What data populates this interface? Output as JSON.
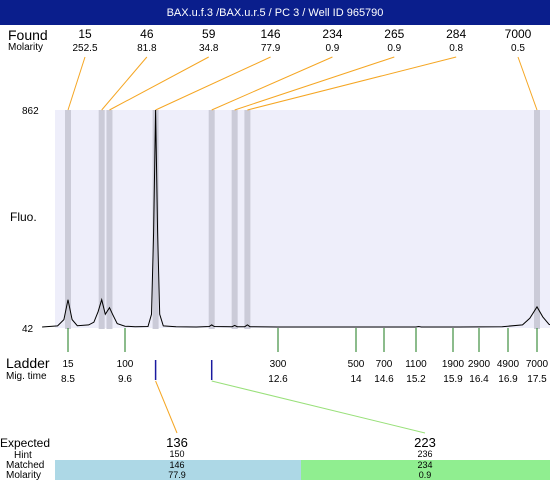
{
  "header": {
    "title": "BAX.u.f.3 /BAX.u.r.5 / PC 3 / Well ID 965790"
  },
  "labels": {
    "found": "Found",
    "molarity": "Molarity",
    "fluo": "Fluo.",
    "ladder": "Ladder",
    "mig_time": "Mig. time",
    "expected": "Expected",
    "hint": "Hint",
    "matched": "Matched",
    "molarity2": "Molarity"
  },
  "colors": {
    "header_bg": "#0a1e8c",
    "plot_bg": "#eeeefa",
    "peak_band": "#cbcbd8",
    "found_line": "#f5a623",
    "ladder_tick": "#1a7a1a",
    "expected_tick": "#1a1aa0",
    "expected_line": "#f5a623",
    "expected_line2": "#99e07a",
    "matched1_bg": "#add8e6",
    "matched2_bg": "#90ee90"
  },
  "chart_data": {
    "type": "line",
    "title": "BAX.u.f.3 /BAX.u.r.5 / PC 3 / Well ID 965790",
    "xlabel": "",
    "ylabel": "Fluo.",
    "ylim": [
      42,
      862
    ],
    "y_ticks": [
      "862",
      "42"
    ],
    "found_peaks": [
      {
        "size": "15",
        "molarity": "252.5",
        "mig_time": 8.5
      },
      {
        "size": "46",
        "molarity": "81.8",
        "mig_time": 9.15
      },
      {
        "size": "59",
        "molarity": "34.8",
        "mig_time": 9.3
      },
      {
        "size": "146",
        "molarity": "77.9",
        "mig_time": 10.2
      },
      {
        "size": "234",
        "molarity": "0.9",
        "mig_time": 11.3
      },
      {
        "size": "265",
        "molarity": "0.9",
        "mig_time": 11.75
      },
      {
        "size": "284",
        "molarity": "0.8",
        "mig_time": 12.0
      },
      {
        "size": "7000",
        "molarity": "0.5",
        "mig_time": 17.5
      }
    ],
    "ladder": [
      {
        "size": "15",
        "mig_time": "8.5"
      },
      {
        "size": "100",
        "mig_time": "9.6"
      },
      {
        "size": "300",
        "mig_time": "12.6"
      },
      {
        "size": "500",
        "mig_time": "14"
      },
      {
        "size": "700",
        "mig_time": "14.6"
      },
      {
        "size": "1100",
        "mig_time": "15.2"
      },
      {
        "size": "1900",
        "mig_time": "15.9"
      },
      {
        "size": "2900",
        "mig_time": "16.4"
      },
      {
        "size": "4900",
        "mig_time": "16.9"
      },
      {
        "size": "7000",
        "mig_time": "17.5"
      }
    ],
    "expected": [
      {
        "size": "136",
        "hint": "150",
        "matched": "146",
        "molarity": "77.9",
        "mig_time": 10.2
      },
      {
        "size": "223",
        "hint": "236",
        "matched": "234",
        "molarity": "0.9",
        "mig_time": 11.3
      }
    ],
    "trace": [
      [
        8.0,
        42
      ],
      [
        8.3,
        46
      ],
      [
        8.42,
        70
      ],
      [
        8.5,
        145
      ],
      [
        8.58,
        70
      ],
      [
        8.68,
        47
      ],
      [
        8.9,
        50
      ],
      [
        9.0,
        60
      ],
      [
        9.08,
        100
      ],
      [
        9.15,
        145
      ],
      [
        9.22,
        90
      ],
      [
        9.3,
        115
      ],
      [
        9.36,
        90
      ],
      [
        9.45,
        55
      ],
      [
        9.6,
        45
      ],
      [
        9.8,
        43
      ],
      [
        10.05,
        44
      ],
      [
        10.12,
        90
      ],
      [
        10.16,
        400
      ],
      [
        10.2,
        862
      ],
      [
        10.24,
        400
      ],
      [
        10.28,
        90
      ],
      [
        10.35,
        46
      ],
      [
        10.6,
        43
      ],
      [
        11.0,
        42
      ],
      [
        11.25,
        44
      ],
      [
        11.3,
        50
      ],
      [
        11.35,
        44
      ],
      [
        11.7,
        43
      ],
      [
        11.75,
        48
      ],
      [
        11.8,
        43
      ],
      [
        11.95,
        43
      ],
      [
        12.0,
        50
      ],
      [
        12.05,
        43
      ],
      [
        12.6,
        42
      ],
      [
        13.5,
        42
      ],
      [
        14.5,
        42
      ],
      [
        15.2,
        42
      ],
      [
        15.25,
        44
      ],
      [
        15.3,
        42
      ],
      [
        16.0,
        42
      ],
      [
        16.8,
        43
      ],
      [
        17.2,
        50
      ],
      [
        17.35,
        75
      ],
      [
        17.5,
        118
      ],
      [
        17.62,
        80
      ],
      [
        17.75,
        52
      ],
      [
        17.95,
        44
      ]
    ]
  }
}
